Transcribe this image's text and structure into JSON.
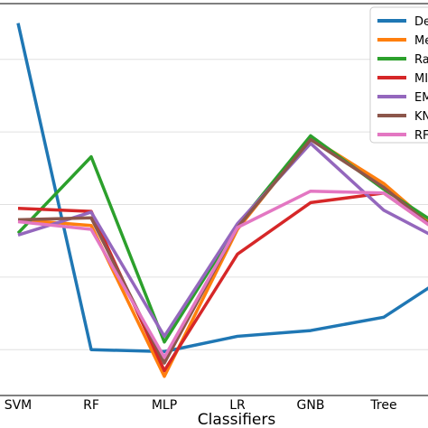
{
  "chart_data": {
    "type": "line",
    "xlabel": "Classifiers",
    "ylabel": "",
    "categories": [
      "SVM",
      "RF",
      "MLP",
      "LR",
      "GNB",
      "Tree",
      ""
    ],
    "ylim": [
      0,
      1
    ],
    "grid": "horizontal",
    "legend_position": "top-right",
    "series": [
      {
        "name": "De",
        "color": "#1f77b4",
        "values": [
          0.975,
          0.12,
          0.115,
          0.155,
          0.17,
          0.205,
          0.33
        ]
      },
      {
        "name": "Me",
        "color": "#ff7f0e",
        "values": [
          0.46,
          0.445,
          0.05,
          0.435,
          0.675,
          0.555,
          0.39
        ]
      },
      {
        "name": "Ra",
        "color": "#2ca02c",
        "values": [
          0.425,
          0.625,
          0.14,
          0.445,
          0.68,
          0.54,
          0.415
        ]
      },
      {
        "name": "MI",
        "color": "#d62728",
        "values": [
          0.49,
          0.482,
          0.065,
          0.37,
          0.505,
          0.53,
          0.395
        ]
      },
      {
        "name": "EM",
        "color": "#9467bd",
        "values": [
          0.42,
          0.48,
          0.155,
          0.45,
          0.66,
          0.485,
          0.385
        ]
      },
      {
        "name": "KN",
        "color": "#8c564b",
        "values": [
          0.46,
          0.465,
          0.085,
          0.44,
          0.67,
          0.545,
          0.39
        ]
      },
      {
        "name": "RF",
        "color": "#e377c2",
        "values": [
          0.455,
          0.435,
          0.1,
          0.44,
          0.535,
          0.53,
          0.395
        ]
      }
    ]
  }
}
